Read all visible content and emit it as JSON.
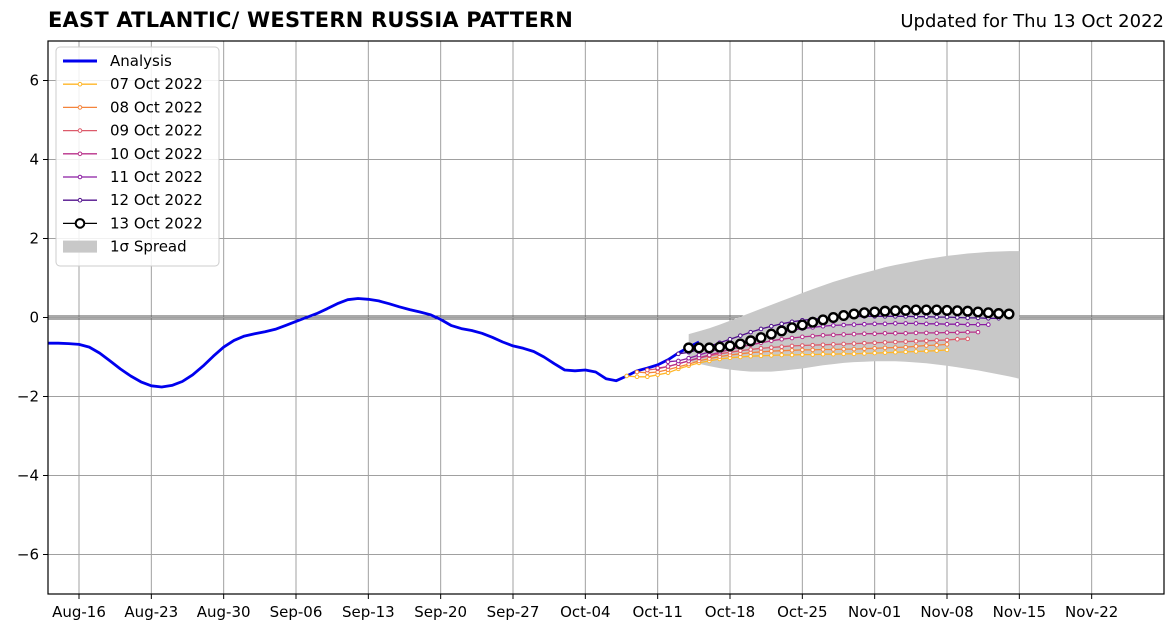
{
  "title": "EAST ATLANTIC/ WESTERN RUSSIA PATTERN",
  "subtitle": "Updated for Thu 13 Oct 2022",
  "chart_data": {
    "type": "line",
    "title": "EAST ATLANTIC/ WESTERN RUSSIA PATTERN",
    "subtitle": "Updated for Thu 13 Oct 2022",
    "xlim": [
      "2022-08-13",
      "2022-11-29"
    ],
    "ylim": [
      -7,
      7
    ],
    "xticks": [
      "2022-08-16",
      "2022-08-23",
      "2022-08-30",
      "2022-09-06",
      "2022-09-13",
      "2022-09-20",
      "2022-09-27",
      "2022-10-04",
      "2022-10-11",
      "2022-10-18",
      "2022-10-25",
      "2022-11-01",
      "2022-11-08",
      "2022-11-15",
      "2022-11-22"
    ],
    "xtick_labels": [
      "Aug-16",
      "Aug-23",
      "Aug-30",
      "Sep-06",
      "Sep-13",
      "Sep-20",
      "Sep-27",
      "Oct-04",
      "Oct-11",
      "Oct-18",
      "Oct-25",
      "Nov-01",
      "Nov-08",
      "Nov-15",
      "Nov-22"
    ],
    "yticks": [
      -6,
      -4,
      -2,
      0,
      2,
      4,
      6
    ],
    "ytick_labels": [
      "−6",
      "−4",
      "−2",
      "0",
      "2",
      "4",
      "6"
    ],
    "grid": true,
    "zero_line": true,
    "legend_position": "upper-left",
    "series": [
      {
        "name": "Analysis",
        "color": "#0000ee",
        "style": "line",
        "start": "2022-08-13",
        "values": [
          -0.65,
          -0.65,
          -0.66,
          -0.68,
          -0.75,
          -0.9,
          -1.1,
          -1.3,
          -1.48,
          -1.63,
          -1.73,
          -1.76,
          -1.72,
          -1.62,
          -1.45,
          -1.23,
          -0.98,
          -0.75,
          -0.58,
          -0.47,
          -0.41,
          -0.36,
          -0.3,
          -0.2,
          -0.1,
          0.0,
          0.1,
          0.22,
          0.35,
          0.45,
          0.48,
          0.46,
          0.42,
          0.35,
          0.27,
          0.2,
          0.14,
          0.07,
          -0.05,
          -0.2,
          -0.28,
          -0.33,
          -0.4,
          -0.5,
          -0.62,
          -0.72,
          -0.78,
          -0.86,
          -1.0,
          -1.17,
          -1.33,
          -1.35,
          -1.33,
          -1.38,
          -1.55,
          -1.6,
          -1.48,
          -1.35,
          -1.28,
          -1.2,
          -1.07,
          -0.9,
          -0.75,
          -0.62
        ]
      },
      {
        "name": "07 Oct 2022",
        "color": "#ffb627",
        "style": "small-marker",
        "start": "2022-10-08",
        "values": [
          -1.48,
          -1.5,
          -1.5,
          -1.45,
          -1.4,
          -1.3,
          -1.22,
          -1.15,
          -1.1,
          -1.05,
          -1.02,
          -1.0,
          -0.98,
          -0.97,
          -0.96,
          -0.95,
          -0.95,
          -0.94,
          -0.94,
          -0.93,
          -0.93,
          -0.92,
          -0.92,
          -0.91,
          -0.9,
          -0.89,
          -0.88,
          -0.87,
          -0.86,
          -0.85,
          -0.84,
          -0.82
        ]
      },
      {
        "name": "08 Oct 2022",
        "color": "#f4843c",
        "style": "small-marker",
        "start": "2022-10-09",
        "values": [
          -1.38,
          -1.4,
          -1.38,
          -1.32,
          -1.25,
          -1.18,
          -1.1,
          -1.04,
          -0.99,
          -0.95,
          -0.92,
          -0.89,
          -0.87,
          -0.85,
          -0.84,
          -0.83,
          -0.82,
          -0.82,
          -0.81,
          -0.81,
          -0.8,
          -0.8,
          -0.79,
          -0.78,
          -0.77,
          -0.76,
          -0.75,
          -0.73,
          -0.71,
          -0.7,
          -0.68
        ]
      },
      {
        "name": "09 Oct 2022",
        "color": "#dc5a6a",
        "style": "small-marker",
        "start": "2022-10-10",
        "values": [
          -1.33,
          -1.3,
          -1.24,
          -1.17,
          -1.1,
          -1.03,
          -0.97,
          -0.92,
          -0.88,
          -0.84,
          -0.81,
          -0.78,
          -0.76,
          -0.74,
          -0.72,
          -0.71,
          -0.7,
          -0.69,
          -0.68,
          -0.67,
          -0.66,
          -0.65,
          -0.64,
          -0.63,
          -0.62,
          -0.61,
          -0.6,
          -0.59,
          -0.58,
          -0.57,
          -0.55,
          -0.54
        ]
      },
      {
        "name": "10 Oct 2022",
        "color": "#b8308a",
        "style": "small-marker",
        "start": "2022-10-11",
        "values": [
          -1.28,
          -1.24,
          -1.17,
          -1.1,
          -1.02,
          -0.95,
          -0.88,
          -0.81,
          -0.75,
          -0.69,
          -0.64,
          -0.59,
          -0.55,
          -0.52,
          -0.49,
          -0.47,
          -0.45,
          -0.44,
          -0.43,
          -0.42,
          -0.41,
          -0.41,
          -0.4,
          -0.4,
          -0.4,
          -0.39,
          -0.39,
          -0.39,
          -0.38,
          -0.38,
          -0.37,
          -0.37
        ]
      },
      {
        "name": "11 Oct 2022",
        "color": "#8a1ca2",
        "style": "small-marker",
        "start": "2022-10-12",
        "values": [
          -1.12,
          -1.1,
          -1.03,
          -0.95,
          -0.87,
          -0.79,
          -0.71,
          -0.63,
          -0.56,
          -0.49,
          -0.43,
          -0.37,
          -0.32,
          -0.28,
          -0.25,
          -0.22,
          -0.2,
          -0.19,
          -0.18,
          -0.17,
          -0.16,
          -0.16,
          -0.15,
          -0.15,
          -0.15,
          -0.16,
          -0.16,
          -0.17,
          -0.17,
          -0.18,
          -0.18,
          -0.18
        ]
      },
      {
        "name": "12 Oct 2022",
        "color": "#50108c",
        "style": "small-marker",
        "start": "2022-10-13",
        "values": [
          -0.92,
          -0.88,
          -0.81,
          -0.73,
          -0.64,
          -0.55,
          -0.46,
          -0.37,
          -0.29,
          -0.22,
          -0.16,
          -0.11,
          -0.07,
          -0.04,
          -0.02,
          0.0,
          0.01,
          0.02,
          0.03,
          0.03,
          0.03,
          0.03,
          0.03,
          0.02,
          0.02,
          0.01,
          0.01,
          0.0,
          -0.01,
          -0.01,
          -0.02,
          -0.02
        ]
      },
      {
        "name": "13 Oct 2022",
        "color": "#000000",
        "style": "large-marker",
        "start": "2022-10-14",
        "values": [
          -0.77,
          -0.77,
          -0.77,
          -0.75,
          -0.72,
          -0.67,
          -0.59,
          -0.51,
          -0.42,
          -0.34,
          -0.26,
          -0.19,
          -0.12,
          -0.06,
          0.0,
          0.05,
          0.09,
          0.12,
          0.14,
          0.16,
          0.17,
          0.18,
          0.19,
          0.19,
          0.19,
          0.18,
          0.17,
          0.16,
          0.14,
          0.12,
          0.1,
          0.09
        ]
      }
    ],
    "spread": {
      "name": "1σ Spread",
      "color": "#c8c8c8",
      "start": "2022-10-14",
      "upper": [
        -0.42,
        -0.35,
        -0.27,
        -0.18,
        -0.08,
        0.02,
        0.12,
        0.22,
        0.32,
        0.42,
        0.52,
        0.62,
        0.72,
        0.81,
        0.9,
        0.98,
        1.06,
        1.13,
        1.2,
        1.27,
        1.33,
        1.38,
        1.43,
        1.48,
        1.52,
        1.56,
        1.59,
        1.62,
        1.64,
        1.66,
        1.67,
        1.68,
        1.68
      ],
      "lower": [
        -1.1,
        -1.17,
        -1.23,
        -1.28,
        -1.32,
        -1.35,
        -1.37,
        -1.37,
        -1.37,
        -1.35,
        -1.32,
        -1.29,
        -1.25,
        -1.21,
        -1.18,
        -1.15,
        -1.13,
        -1.12,
        -1.11,
        -1.11,
        -1.11,
        -1.12,
        -1.14,
        -1.16,
        -1.19,
        -1.22,
        -1.26,
        -1.3,
        -1.34,
        -1.39,
        -1.44,
        -1.49,
        -1.55
      ]
    }
  }
}
